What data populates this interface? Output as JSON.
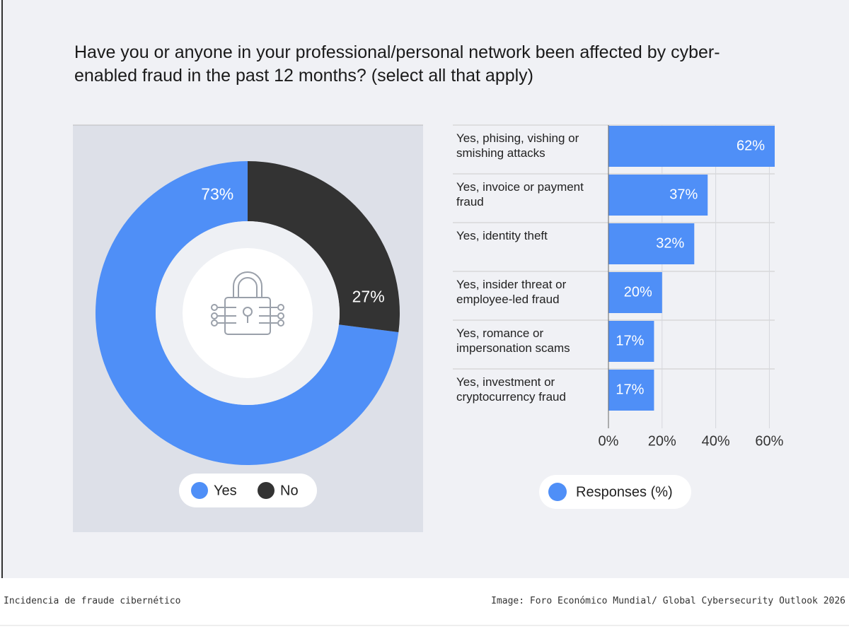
{
  "title": "Have you or anyone in your professional/personal network been affected by cyber-enabled fraud in the past 12 months? (select all that apply)",
  "caption": "Incidencia de fraude cibernético",
  "source": "Image: Foro Económico Mundial/ Global Cybersecurity Outlook 2026",
  "chart_data": [
    {
      "type": "donut",
      "categories": [
        "Yes",
        "No"
      ],
      "values": [
        73,
        27
      ],
      "value_labels": [
        "73%",
        "27%"
      ],
      "colors": [
        "#4f8ff7",
        "#333333"
      ]
    },
    {
      "type": "hbar",
      "categories": [
        "Yes, phising, vishing or smishing attacks",
        "Yes, invoice or payment fraud",
        "Yes, identity theft",
        "Yes, insider threat or employee-led fraud",
        "Yes, romance or impersonation scams",
        "Yes, investment or cryptocurrency fraud"
      ],
      "series": [
        {
          "name": "Responses (%)",
          "color": "#4f8ff7",
          "values": [
            62,
            37,
            32,
            20,
            17,
            17
          ],
          "value_labels": [
            "62%",
            "37%",
            "32%",
            "20%",
            "17%",
            "17%"
          ]
        }
      ],
      "xlim": [
        0,
        62
      ],
      "xticks": [
        {
          "value": 0,
          "label": "0%"
        },
        {
          "value": 20,
          "label": "20%"
        },
        {
          "value": 40,
          "label": "40%"
        },
        {
          "value": 60,
          "label": "60%"
        }
      ],
      "grid": true
    }
  ]
}
